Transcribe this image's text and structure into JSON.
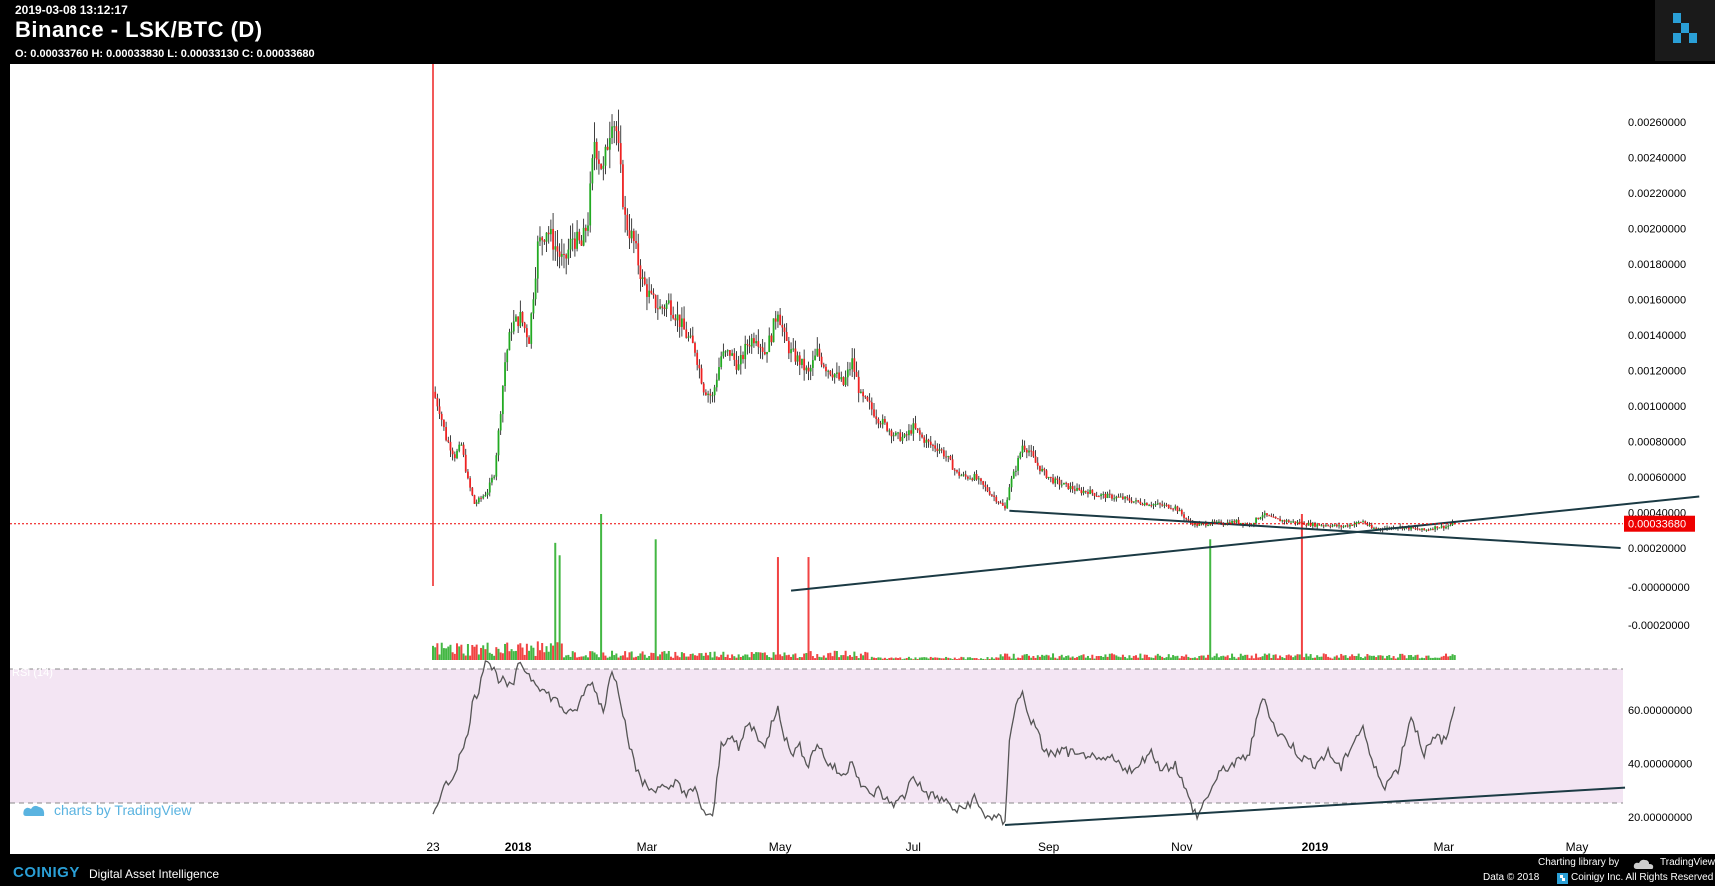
{
  "header": {
    "timestamp": "2019-03-08 13:12:17",
    "title": "Binance - LSK/BTC (D)",
    "ohlc": "O: 0.00033760 H: 0.00033830 L: 0.00033130 C: 0.00033680"
  },
  "colors": {
    "up": "#22aa22",
    "down": "#ee2222",
    "trend": "#1b3a44",
    "rsi_band": "#f3e5f3",
    "rsi_line": "#555555",
    "last_price": "#ee0000",
    "brand": "#2a9fd6"
  },
  "footer": {
    "brand": "COINIGY",
    "tagline": "Digital Asset Intelligence",
    "charting_by": "Charting library by",
    "tradingview": "TradingView",
    "copyright_left": "Data © 2018",
    "copyright_right": "Coinigy Inc. All Rights Reserved",
    "watermark": "charts by TradingView"
  },
  "chart_data": {
    "type": "candlestick",
    "x_ticks": [
      "23",
      "2018",
      "Mar",
      "May",
      "Jul",
      "Sep",
      "Nov",
      "2019",
      "Mar",
      "May"
    ],
    "x_tick_values": [
      0,
      39,
      98,
      159,
      220,
      282,
      343,
      404,
      463,
      524
    ],
    "x_domain": [
      0,
      530
    ],
    "price_axis": {
      "ticks": [
        "0.00260000",
        "0.00240000",
        "0.00220000",
        "0.00200000",
        "0.00180000",
        "0.00160000",
        "0.00140000",
        "0.00120000",
        "0.00100000",
        "0.00080000",
        "0.00060000",
        "0.00040000",
        "0.00020000",
        "-0.00000000",
        "-0.00020000"
      ],
      "tick_values": [
        0.0026,
        0.0024,
        0.0022,
        0.002,
        0.0018,
        0.0016,
        0.0014,
        0.0012,
        0.001,
        0.0008,
        0.0006,
        0.0004,
        0.0002,
        0,
        -0.0002
      ],
      "last_price_label": "0.00033680",
      "last_price": 0.0003368
    },
    "price_series": {
      "note_days": "day index from chart start",
      "close_path": [
        [
          0,
          0.00108
        ],
        [
          3,
          0.00098
        ],
        [
          6,
          0.00082
        ],
        [
          10,
          0.00072
        ],
        [
          13,
          0.00078
        ],
        [
          16,
          0.00058
        ],
        [
          19,
          0.00045
        ],
        [
          22,
          0.00048
        ],
        [
          25,
          0.00052
        ],
        [
          28,
          0.00062
        ],
        [
          30,
          0.00085
        ],
        [
          33,
          0.00125
        ],
        [
          36,
          0.00145
        ],
        [
          40,
          0.0015
        ],
        [
          44,
          0.00138
        ],
        [
          48,
          0.0019
        ],
        [
          52,
          0.002
        ],
        [
          56,
          0.0019
        ],
        [
          60,
          0.0018
        ],
        [
          64,
          0.00195
        ],
        [
          68,
          0.0019
        ],
        [
          71,
          0.00205
        ],
        [
          74,
          0.0025
        ],
        [
          76,
          0.0024
        ],
        [
          78,
          0.00232
        ],
        [
          82,
          0.00265
        ],
        [
          84,
          0.00255
        ],
        [
          88,
          0.00205
        ],
        [
          92,
          0.00192
        ],
        [
          96,
          0.0017
        ],
        [
          100,
          0.0016
        ],
        [
          104,
          0.00155
        ],
        [
          108,
          0.00158
        ],
        [
          112,
          0.0015
        ],
        [
          116,
          0.0014
        ],
        [
          120,
          0.00132
        ],
        [
          124,
          0.0011
        ],
        [
          128,
          0.00105
        ],
        [
          132,
          0.00128
        ],
        [
          136,
          0.0013
        ],
        [
          140,
          0.00122
        ],
        [
          144,
          0.00135
        ],
        [
          148,
          0.0014
        ],
        [
          152,
          0.0013
        ],
        [
          155,
          0.0014
        ],
        [
          158,
          0.00155
        ],
        [
          161,
          0.00138
        ],
        [
          164,
          0.0013
        ],
        [
          168,
          0.00125
        ],
        [
          172,
          0.00118
        ],
        [
          176,
          0.0013
        ],
        [
          180,
          0.00122
        ],
        [
          184,
          0.00118
        ],
        [
          188,
          0.00112
        ],
        [
          192,
          0.00125
        ],
        [
          196,
          0.00105
        ],
        [
          200,
          0.001
        ],
        [
          204,
          0.00093
        ],
        [
          208,
          0.00088
        ],
        [
          212,
          0.00083
        ],
        [
          216,
          0.00082
        ],
        [
          220,
          0.00088
        ],
        [
          224,
          0.00082
        ],
        [
          228,
          0.00078
        ],
        [
          232,
          0.00076
        ],
        [
          236,
          0.0007
        ],
        [
          240,
          0.00062
        ],
        [
          244,
          0.0006
        ],
        [
          248,
          0.0006
        ],
        [
          252,
          0.00055
        ],
        [
          256,
          0.0005
        ],
        [
          260,
          0.00045
        ],
        [
          262,
          0.00042
        ],
        [
          264,
          0.00055
        ],
        [
          267,
          0.00065
        ],
        [
          270,
          0.00078
        ],
        [
          273,
          0.00075
        ],
        [
          276,
          0.00068
        ],
        [
          280,
          0.00062
        ],
        [
          284,
          0.00058
        ],
        [
          288,
          0.00056
        ],
        [
          292,
          0.00054
        ],
        [
          296,
          0.00052
        ],
        [
          300,
          0.00052
        ],
        [
          304,
          0.0005
        ],
        [
          310,
          0.00049
        ],
        [
          316,
          0.00048
        ],
        [
          322,
          0.00046
        ],
        [
          328,
          0.00045
        ],
        [
          334,
          0.00044
        ],
        [
          340,
          0.00043
        ],
        [
          346,
          0.00035
        ],
        [
          350,
          0.00033
        ],
        [
          356,
          0.00034
        ],
        [
          362,
          0.00034
        ],
        [
          368,
          0.00035
        ],
        [
          374,
          0.00033
        ],
        [
          380,
          0.00039
        ],
        [
          386,
          0.00036
        ],
        [
          392,
          0.00035
        ],
        [
          398,
          0.00034
        ],
        [
          404,
          0.00033
        ],
        [
          410,
          0.00033
        ],
        [
          416,
          0.00032
        ],
        [
          420,
          0.00033
        ],
        [
          426,
          0.00035
        ],
        [
          430,
          0.00031
        ],
        [
          436,
          0.00031
        ],
        [
          442,
          0.00032
        ],
        [
          448,
          0.00031
        ],
        [
          454,
          0.0003
        ],
        [
          460,
          0.00032
        ],
        [
          464,
          0.00032
        ],
        [
          468,
          0.00034
        ]
      ],
      "trendline": [
        [
          264,
          0.00041
        ],
        [
          544,
          0.0002
        ]
      ]
    },
    "volume_series": {
      "trendline": [
        [
          164,
          -4e-05
        ],
        [
          580,
          0.00049
        ]
      ],
      "spikes": [
        [
          56,
          0.00043
        ],
        [
          58,
          0.00036
        ],
        [
          77,
          0.00079
        ],
        [
          102,
          0.00045
        ],
        [
          158,
          0.00035
        ],
        [
          172,
          0.00035
        ],
        [
          356,
          0.00045
        ],
        [
          398,
          0.0006
        ]
      ]
    },
    "rsi": {
      "label": "RSI (14)",
      "ticks": [
        "60.00000000",
        "40.00000000",
        "20.00000000"
      ],
      "tick_values": [
        60,
        40,
        20
      ],
      "band": [
        30,
        70
      ],
      "path": [
        [
          0,
          21
        ],
        [
          3,
          28
        ],
        [
          6,
          32
        ],
        [
          9,
          35
        ],
        [
          12,
          42
        ],
        [
          15,
          48
        ],
        [
          18,
          62
        ],
        [
          21,
          68
        ],
        [
          24,
          80
        ],
        [
          27,
          76
        ],
        [
          30,
          72
        ],
        [
          33,
          70
        ],
        [
          36,
          68
        ],
        [
          40,
          78
        ],
        [
          44,
          73
        ],
        [
          48,
          70
        ],
        [
          52,
          66
        ],
        [
          56,
          64
        ],
        [
          60,
          60
        ],
        [
          64,
          58
        ],
        [
          68,
          64
        ],
        [
          72,
          71
        ],
        [
          75,
          66
        ],
        [
          78,
          60
        ],
        [
          82,
          75
        ],
        [
          84,
          72
        ],
        [
          88,
          55
        ],
        [
          92,
          40
        ],
        [
          96,
          33
        ],
        [
          100,
          30
        ],
        [
          104,
          32
        ],
        [
          108,
          29
        ],
        [
          112,
          34
        ],
        [
          116,
          28
        ],
        [
          120,
          30
        ],
        [
          124,
          22
        ],
        [
          128,
          19
        ],
        [
          132,
          47
        ],
        [
          136,
          51
        ],
        [
          140,
          45
        ],
        [
          144,
          55
        ],
        [
          148,
          52
        ],
        [
          152,
          45
        ],
        [
          155,
          55
        ],
        [
          158,
          62
        ],
        [
          161,
          50
        ],
        [
          164,
          44
        ],
        [
          168,
          46
        ],
        [
          172,
          40
        ],
        [
          176,
          48
        ],
        [
          180,
          41
        ],
        [
          184,
          38
        ],
        [
          188,
          35
        ],
        [
          192,
          42
        ],
        [
          196,
          32
        ],
        [
          200,
          28
        ],
        [
          204,
          30
        ],
        [
          208,
          26
        ],
        [
          212,
          25
        ],
        [
          216,
          28
        ],
        [
          220,
          36
        ],
        [
          224,
          30
        ],
        [
          228,
          28
        ],
        [
          232,
          27
        ],
        [
          236,
          25
        ],
        [
          240,
          22
        ],
        [
          244,
          24
        ],
        [
          248,
          27
        ],
        [
          252,
          21
        ],
        [
          256,
          20
        ],
        [
          260,
          19
        ],
        [
          262,
          17
        ],
        [
          264,
          50
        ],
        [
          267,
          62
        ],
        [
          270,
          66
        ],
        [
          273,
          58
        ],
        [
          276,
          53
        ],
        [
          280,
          45
        ],
        [
          284,
          43
        ],
        [
          288,
          45
        ],
        [
          292,
          44
        ],
        [
          296,
          42
        ],
        [
          300,
          44
        ],
        [
          304,
          40
        ],
        [
          310,
          42
        ],
        [
          316,
          39
        ],
        [
          322,
          37
        ],
        [
          328,
          45
        ],
        [
          334,
          38
        ],
        [
          340,
          40
        ],
        [
          346,
          27
        ],
        [
          350,
          20
        ],
        [
          356,
          30
        ],
        [
          362,
          38
        ],
        [
          368,
          40
        ],
        [
          374,
          44
        ],
        [
          380,
          66
        ],
        [
          386,
          52
        ],
        [
          392,
          48
        ],
        [
          398,
          42
        ],
        [
          404,
          40
        ],
        [
          410,
          44
        ],
        [
          416,
          38
        ],
        [
          420,
          46
        ],
        [
          426,
          54
        ],
        [
          430,
          40
        ],
        [
          436,
          32
        ],
        [
          442,
          38
        ],
        [
          448,
          58
        ],
        [
          454,
          44
        ],
        [
          460,
          50
        ],
        [
          464,
          48
        ],
        [
          468,
          62
        ]
      ],
      "trendline": [
        [
          262,
          17
        ],
        [
          546,
          31
        ]
      ]
    }
  }
}
